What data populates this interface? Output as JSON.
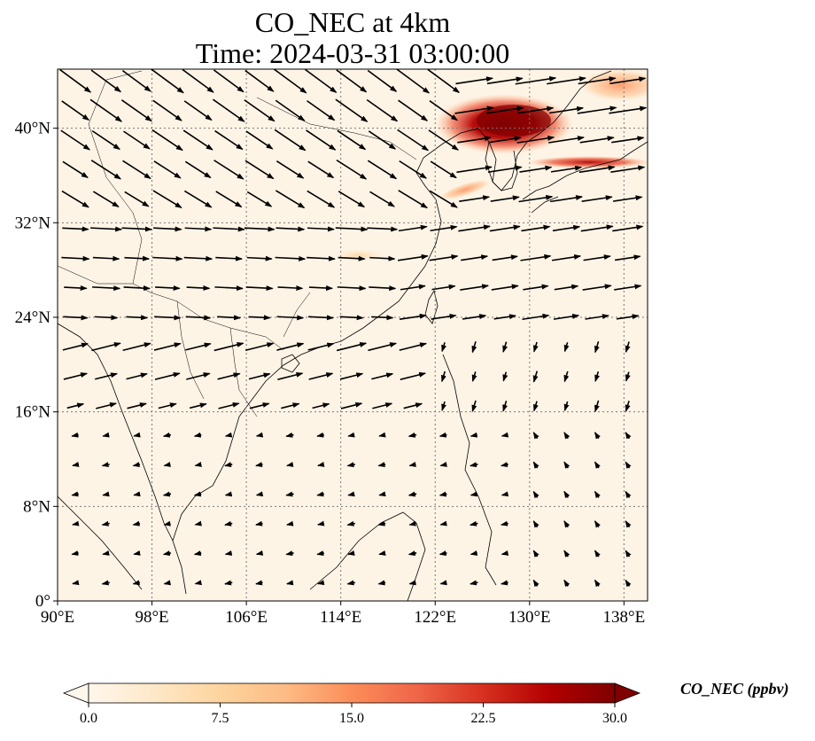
{
  "title": {
    "line1": "CO_NEC at 4km",
    "line2": "Time: 2024-03-31 03:00:00"
  },
  "map": {
    "variable": "CO_NEC",
    "units": "ppbv",
    "extent": {
      "lon": [
        90,
        140
      ],
      "lat": [
        0,
        45
      ]
    },
    "xticks": [
      {
        "value": 90,
        "label": "90°E"
      },
      {
        "value": 98,
        "label": "98°E"
      },
      {
        "value": 106,
        "label": "106°E"
      },
      {
        "value": 114,
        "label": "114°E"
      },
      {
        "value": 122,
        "label": "122°E"
      },
      {
        "value": 130,
        "label": "130°E"
      },
      {
        "value": 138,
        "label": "138°E"
      }
    ],
    "yticks": [
      {
        "value": 0,
        "label": "0°"
      },
      {
        "value": 8,
        "label": "8°N"
      },
      {
        "value": 16,
        "label": "16°N"
      },
      {
        "value": 24,
        "label": "24°N"
      },
      {
        "value": 32,
        "label": "32°N"
      },
      {
        "value": 40,
        "label": "40°N"
      }
    ],
    "gridlines": true,
    "plume_regions": [
      {
        "name": "korea-plume",
        "lon": [
          125,
          134
        ],
        "lat": [
          37,
          43
        ],
        "peak": 30
      },
      {
        "name": "japan-sea-band",
        "lon": [
          130,
          140
        ],
        "lat": [
          36.5,
          37.8
        ],
        "peak": 24
      },
      {
        "name": "yellow-sea-streak",
        "lon": [
          122,
          126
        ],
        "lat": [
          34,
          35.5
        ],
        "peak": 14
      },
      {
        "name": "northeast-edge",
        "lon": [
          133,
          140
        ],
        "lat": [
          42,
          45
        ],
        "peak": 12
      },
      {
        "name": "east-china-faint",
        "lon": [
          113,
          118
        ],
        "lat": [
          28.5,
          30
        ],
        "peak": 5
      }
    ]
  },
  "colorbar": {
    "label": "CO_NEC (ppbv)",
    "range": [
      0,
      30
    ],
    "ticks": [
      "0.0",
      "7.5",
      "15.0",
      "22.5",
      "30.0"
    ],
    "colormap": "OrRd",
    "extend": "both",
    "colors": [
      "#fff7ec",
      "#fee8c8",
      "#fdd49e",
      "#fdbb84",
      "#fc8d59",
      "#ef6548",
      "#d7301f",
      "#b30000",
      "#7f0000"
    ]
  }
}
